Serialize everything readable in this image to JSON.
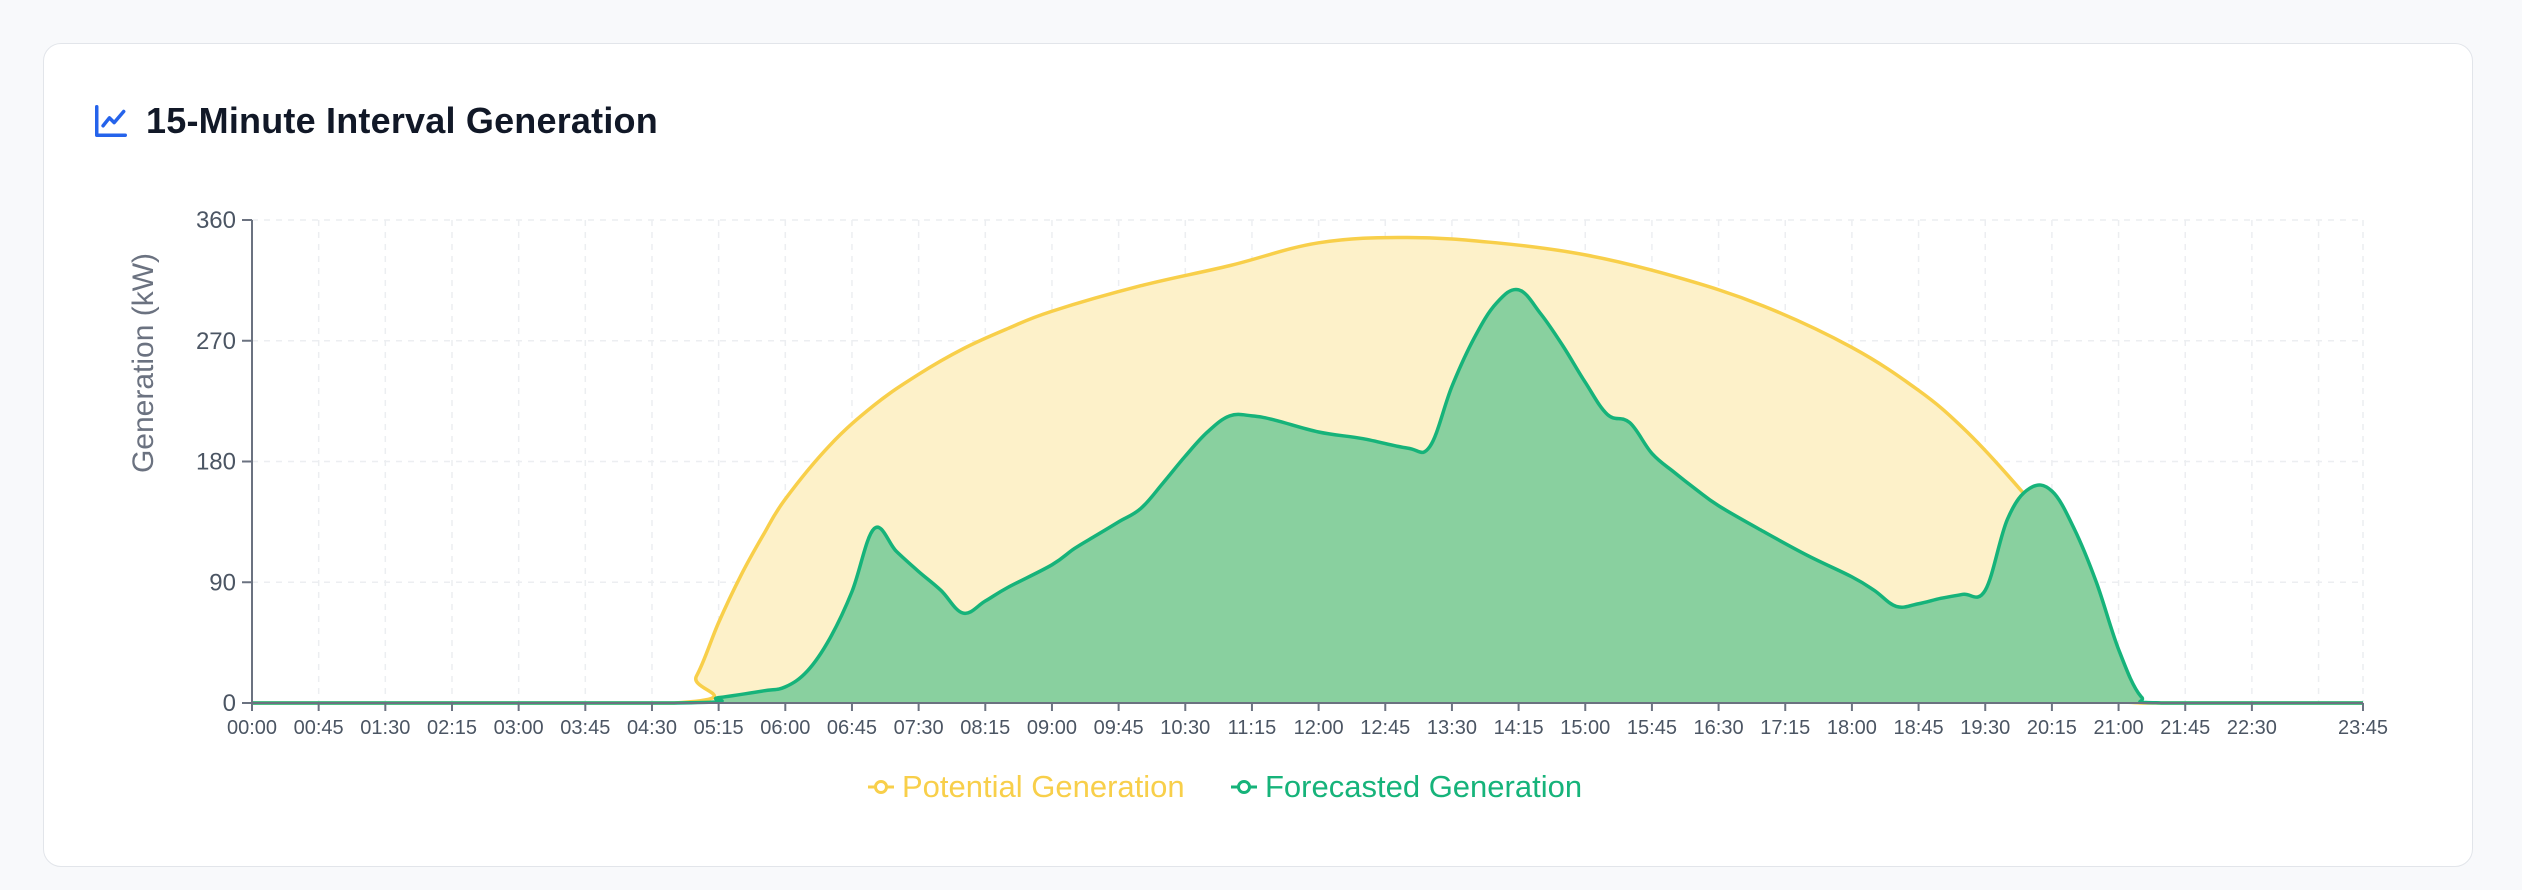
{
  "card": {
    "title": "15-Minute Interval Generation",
    "icon": "line-chart-icon"
  },
  "colors": {
    "potential_line": "#f8cf4a",
    "potential_fill": "#fdf1c9",
    "forecast_line": "#16b37a",
    "forecast_fill": "#89d09f",
    "title_icon": "#2563eb"
  },
  "chart_data": {
    "type": "area",
    "ylabel": "Generation (kW)",
    "ylim": [
      0,
      360
    ],
    "yticks": [
      0,
      90,
      180,
      270,
      360
    ],
    "xlim": [
      "00:00",
      "23:45"
    ],
    "xtick_labels": [
      "00:00",
      "00:45",
      "01:30",
      "02:15",
      "03:00",
      "03:45",
      "04:30",
      "05:15",
      "06:00",
      "06:45",
      "07:30",
      "08:15",
      "09:00",
      "09:45",
      "10:30",
      "11:15",
      "12:00",
      "12:45",
      "13:30",
      "14:15",
      "15:00",
      "15:45",
      "16:30",
      "17:15",
      "18:00",
      "18:45",
      "19:30",
      "20:15",
      "21:00",
      "21:45",
      "22:30",
      "23:45"
    ],
    "grid": true,
    "legend_position": "bottom-center",
    "series": [
      {
        "name": "Potential Generation",
        "points": [
          [
            "00:00",
            0
          ],
          [
            "04:45",
            0
          ],
          [
            "05:00",
            20
          ],
          [
            "05:15",
            60
          ],
          [
            "05:30",
            95
          ],
          [
            "05:45",
            125
          ],
          [
            "06:00",
            152
          ],
          [
            "06:30",
            192
          ],
          [
            "07:00",
            222
          ],
          [
            "07:30",
            245
          ],
          [
            "08:00",
            264
          ],
          [
            "08:30",
            279
          ],
          [
            "09:00",
            292
          ],
          [
            "10:00",
            311
          ],
          [
            "11:00",
            326
          ],
          [
            "12:00",
            343
          ],
          [
            "13:00",
            347
          ],
          [
            "14:00",
            343
          ],
          [
            "15:00",
            334
          ],
          [
            "16:00",
            318
          ],
          [
            "17:00",
            296
          ],
          [
            "18:00",
            265
          ],
          [
            "18:45",
            233
          ],
          [
            "19:15",
            205
          ],
          [
            "19:45",
            170
          ],
          [
            "20:15",
            130
          ],
          [
            "20:30",
            100
          ],
          [
            "20:45",
            55
          ],
          [
            "21:00",
            10
          ],
          [
            "21:15",
            0
          ],
          [
            "23:45",
            0
          ]
        ]
      },
      {
        "name": "Forecasted Generation",
        "points": [
          [
            "00:00",
            0
          ],
          [
            "04:45",
            0
          ],
          [
            "05:15",
            4
          ],
          [
            "05:45",
            9
          ],
          [
            "06:00",
            12
          ],
          [
            "06:15",
            24
          ],
          [
            "06:30",
            48
          ],
          [
            "06:45",
            83
          ],
          [
            "07:00",
            130
          ],
          [
            "07:15",
            113
          ],
          [
            "07:30",
            98
          ],
          [
            "07:45",
            84
          ],
          [
            "08:00",
            67
          ],
          [
            "08:15",
            76
          ],
          [
            "08:30",
            86
          ],
          [
            "09:00",
            103
          ],
          [
            "09:15",
            115
          ],
          [
            "09:30",
            125
          ],
          [
            "09:45",
            135
          ],
          [
            "10:00",
            145
          ],
          [
            "10:15",
            164
          ],
          [
            "10:30",
            184
          ],
          [
            "10:45",
            202
          ],
          [
            "11:00",
            214
          ],
          [
            "11:15",
            214
          ],
          [
            "11:30",
            211
          ],
          [
            "12:00",
            202
          ],
          [
            "12:30",
            197
          ],
          [
            "13:00",
            190
          ],
          [
            "13:15",
            191
          ],
          [
            "13:30",
            236
          ],
          [
            "13:45",
            272
          ],
          [
            "14:00",
            298
          ],
          [
            "14:15",
            308
          ],
          [
            "14:30",
            290
          ],
          [
            "14:45",
            266
          ],
          [
            "15:00",
            239
          ],
          [
            "15:15",
            215
          ],
          [
            "15:30",
            209
          ],
          [
            "15:45",
            186
          ],
          [
            "16:00",
            172
          ],
          [
            "16:15",
            159
          ],
          [
            "16:30",
            147
          ],
          [
            "17:00",
            128
          ],
          [
            "17:30",
            110
          ],
          [
            "18:00",
            94
          ],
          [
            "18:15",
            84
          ],
          [
            "18:30",
            72
          ],
          [
            "18:45",
            74
          ],
          [
            "19:00",
            78
          ],
          [
            "19:15",
            81
          ],
          [
            "19:30",
            84
          ],
          [
            "19:45",
            137
          ],
          [
            "20:00",
            160
          ],
          [
            "20:15",
            158
          ],
          [
            "20:30",
            130
          ],
          [
            "20:45",
            90
          ],
          [
            "21:00",
            40
          ],
          [
            "21:15",
            5
          ],
          [
            "21:30",
            0
          ],
          [
            "23:45",
            0
          ]
        ]
      }
    ]
  }
}
